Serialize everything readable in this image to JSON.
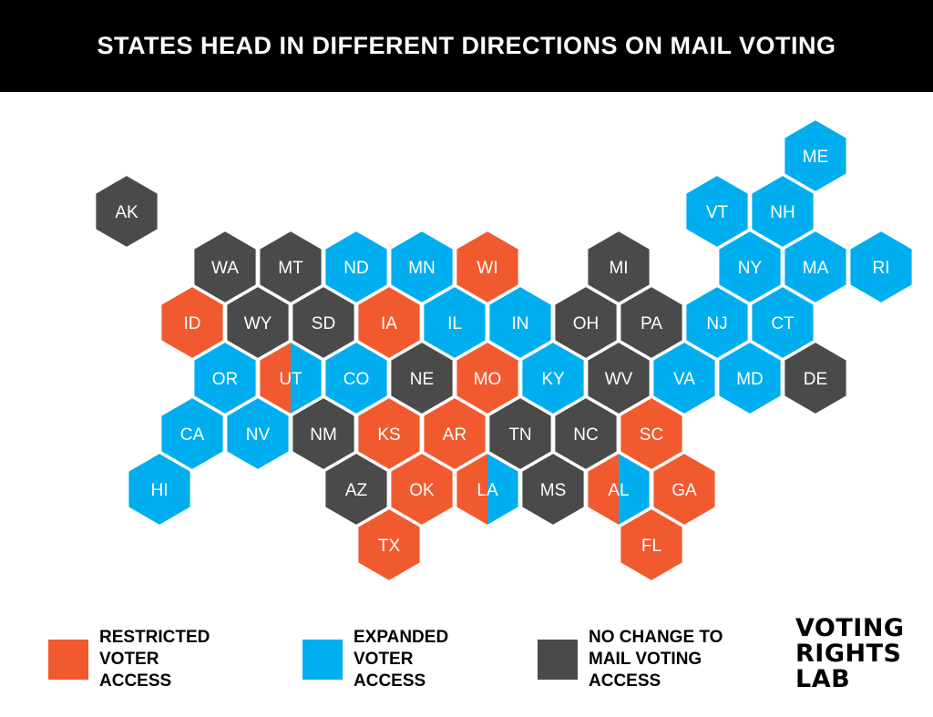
{
  "title": "STATES HEAD IN DIFFERENT DIRECTIONS ON MAIL VOTING",
  "colors": {
    "restricted": "#f15a2e",
    "expanded": "#00aeef",
    "no_change": "#4a4a4a",
    "stroke": "#ffffff",
    "text": "#ffffff"
  },
  "states": [
    {
      "abbr": "AK",
      "status": "no_change",
      "row": 0,
      "col": 1
    },
    {
      "abbr": "ME",
      "status": "expanded",
      "row": -1,
      "col": 11
    },
    {
      "abbr": "VT",
      "status": "expanded",
      "row": 0,
      "col": 10
    },
    {
      "abbr": "NH",
      "status": "expanded",
      "row": 0,
      "col": 11
    },
    {
      "abbr": "WA",
      "status": "no_change",
      "row": 1,
      "col": 2
    },
    {
      "abbr": "MT",
      "status": "no_change",
      "row": 1,
      "col": 3
    },
    {
      "abbr": "ND",
      "status": "expanded",
      "row": 1,
      "col": 4
    },
    {
      "abbr": "MN",
      "status": "expanded",
      "row": 1,
      "col": 5
    },
    {
      "abbr": "WI",
      "status": "restricted",
      "row": 1,
      "col": 6
    },
    {
      "abbr": "MI",
      "status": "no_change",
      "row": 1,
      "col": 8
    },
    {
      "abbr": "NY",
      "status": "expanded",
      "row": 1,
      "col": 10
    },
    {
      "abbr": "MA",
      "status": "expanded",
      "row": 1,
      "col": 11
    },
    {
      "abbr": "RI",
      "status": "expanded",
      "row": 1,
      "col": 12
    },
    {
      "abbr": "ID",
      "status": "restricted",
      "row": 2,
      "col": 2
    },
    {
      "abbr": "WY",
      "status": "no_change",
      "row": 2,
      "col": 3
    },
    {
      "abbr": "SD",
      "status": "no_change",
      "row": 2,
      "col": 4
    },
    {
      "abbr": "IA",
      "status": "restricted",
      "row": 2,
      "col": 5
    },
    {
      "abbr": "IL",
      "status": "expanded",
      "row": 2,
      "col": 6
    },
    {
      "abbr": "IN",
      "status": "expanded",
      "row": 2,
      "col": 7
    },
    {
      "abbr": "OH",
      "status": "no_change",
      "row": 2,
      "col": 8
    },
    {
      "abbr": "PA",
      "status": "no_change",
      "row": 2,
      "col": 9
    },
    {
      "abbr": "NJ",
      "status": "expanded",
      "row": 2,
      "col": 10
    },
    {
      "abbr": "CT",
      "status": "expanded",
      "row": 2,
      "col": 11
    },
    {
      "abbr": "OR",
      "status": "expanded",
      "row": 3,
      "col": 2
    },
    {
      "abbr": "UT",
      "status": "split",
      "split": [
        "restricted",
        "expanded"
      ],
      "row": 3,
      "col": 3
    },
    {
      "abbr": "CO",
      "status": "expanded",
      "row": 3,
      "col": 4
    },
    {
      "abbr": "NE",
      "status": "no_change",
      "row": 3,
      "col": 5
    },
    {
      "abbr": "MO",
      "status": "restricted",
      "row": 3,
      "col": 6
    },
    {
      "abbr": "KY",
      "status": "expanded",
      "row": 3,
      "col": 7
    },
    {
      "abbr": "WV",
      "status": "no_change",
      "row": 3,
      "col": 8
    },
    {
      "abbr": "VA",
      "status": "expanded",
      "row": 3,
      "col": 9
    },
    {
      "abbr": "MD",
      "status": "expanded",
      "row": 3,
      "col": 10
    },
    {
      "abbr": "DE",
      "status": "no_change",
      "row": 3,
      "col": 11
    },
    {
      "abbr": "CA",
      "status": "expanded",
      "row": 4,
      "col": 2
    },
    {
      "abbr": "NV",
      "status": "expanded",
      "row": 4,
      "col": 3
    },
    {
      "abbr": "NM",
      "status": "no_change",
      "row": 4,
      "col": 4
    },
    {
      "abbr": "KS",
      "status": "restricted",
      "row": 4,
      "col": 5
    },
    {
      "abbr": "AR",
      "status": "restricted",
      "row": 4,
      "col": 6
    },
    {
      "abbr": "TN",
      "status": "no_change",
      "row": 4,
      "col": 7
    },
    {
      "abbr": "NC",
      "status": "no_change",
      "row": 4,
      "col": 8
    },
    {
      "abbr": "SC",
      "status": "restricted",
      "row": 4,
      "col": 9
    },
    {
      "abbr": "HI",
      "status": "expanded",
      "row": 5,
      "col": 1
    },
    {
      "abbr": "AZ",
      "status": "no_change",
      "row": 5,
      "col": 4
    },
    {
      "abbr": "OK",
      "status": "restricted",
      "row": 5,
      "col": 5
    },
    {
      "abbr": "LA",
      "status": "split",
      "split": [
        "restricted",
        "expanded"
      ],
      "row": 5,
      "col": 6
    },
    {
      "abbr": "MS",
      "status": "no_change",
      "row": 5,
      "col": 7
    },
    {
      "abbr": "AL",
      "status": "split",
      "split": [
        "restricted",
        "expanded"
      ],
      "row": 5,
      "col": 8
    },
    {
      "abbr": "GA",
      "status": "restricted",
      "row": 5,
      "col": 9
    },
    {
      "abbr": "TX",
      "status": "restricted",
      "row": 6,
      "col": 5
    },
    {
      "abbr": "FL",
      "status": "restricted",
      "row": 6,
      "col": 9
    }
  ],
  "legend": [
    {
      "key": "restricted",
      "label": "RESTRICTED\nVOTER\nACCESS"
    },
    {
      "key": "expanded",
      "label": "EXPANDED\nVOTER\nACCESS"
    },
    {
      "key": "no_change",
      "label": "NO CHANGE TO\nMAIL VOTING\nACCESS"
    }
  ],
  "logo": "VOTING\nRIGHTS\nLAB"
}
